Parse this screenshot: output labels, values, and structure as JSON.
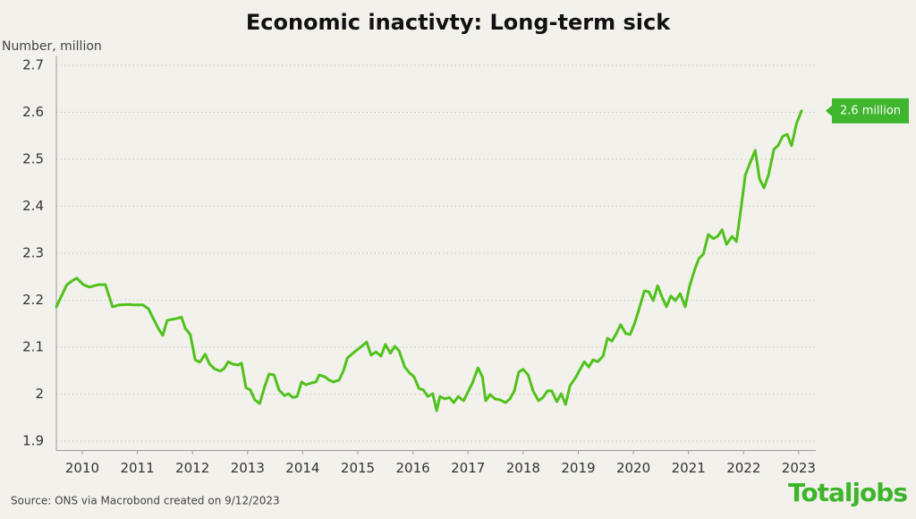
{
  "chart_data": {
    "type": "line",
    "title": "Economic inactivty: Long-term sick",
    "y_axis_label": "Number, million",
    "source": "Source: ONS via Macrobond created on 9/12/2023",
    "logo": "Totaljobs",
    "annotation": "2.6 million",
    "color": "#4fc21c",
    "annotation_color": "#3fb62e",
    "grid": true,
    "xlim": [
      2009.53,
      2023.31
    ],
    "ylim": [
      1.88,
      2.72
    ],
    "xticks": [
      2010,
      2011,
      2012,
      2013,
      2014,
      2015,
      2016,
      2017,
      2018,
      2019,
      2020,
      2021,
      2022,
      2023
    ],
    "yticks": [
      1.9,
      2.0,
      2.1,
      2.2,
      2.3,
      2.4,
      2.5,
      2.6,
      2.7
    ],
    "x": [
      2009.53,
      2009.72,
      2009.84,
      2009.9,
      2010.02,
      2010.13,
      2010.29,
      2010.42,
      2010.55,
      2010.67,
      2010.86,
      2010.94,
      2011.1,
      2011.2,
      2011.28,
      2011.38,
      2011.46,
      2011.54,
      2011.71,
      2011.8,
      2011.87,
      2011.96,
      2012.05,
      2012.13,
      2012.23,
      2012.31,
      2012.4,
      2012.5,
      2012.57,
      2012.65,
      2012.73,
      2012.83,
      2012.89,
      2012.97,
      2013.05,
      2013.13,
      2013.22,
      2013.31,
      2013.39,
      2013.48,
      2013.57,
      2013.67,
      2013.74,
      2013.82,
      2013.9,
      2013.98,
      2014.06,
      2014.16,
      2014.24,
      2014.3,
      2014.4,
      2014.48,
      2014.56,
      2014.66,
      2014.74,
      2014.81,
      2014.94,
      2015.05,
      2015.16,
      2015.24,
      2015.33,
      2015.42,
      2015.5,
      2015.59,
      2015.67,
      2015.75,
      2015.85,
      2015.94,
      2016.02,
      2016.11,
      2016.19,
      2016.27,
      2016.36,
      2016.43,
      2016.49,
      2016.58,
      2016.66,
      2016.74,
      2016.82,
      2016.92,
      2017.0,
      2017.08,
      2017.18,
      2017.26,
      2017.32,
      2017.4,
      2017.49,
      2017.58,
      2017.68,
      2017.76,
      2017.84,
      2017.92,
      2018.0,
      2018.09,
      2018.18,
      2018.28,
      2018.36,
      2018.44,
      2018.52,
      2018.61,
      2018.69,
      2018.77,
      2018.85,
      2018.95,
      2019.03,
      2019.11,
      2019.19,
      2019.27,
      2019.35,
      2019.45,
      2019.53,
      2019.61,
      2019.69,
      2019.77,
      2019.86,
      2019.94,
      2020.02,
      2020.1,
      2020.2,
      2020.28,
      2020.36,
      2020.44,
      2020.52,
      2020.6,
      2020.68,
      2020.76,
      2020.85,
      2020.94,
      2021.02,
      2021.11,
      2021.19,
      2021.27,
      2021.36,
      2021.45,
      2021.53,
      2021.61,
      2021.69,
      2021.79,
      2021.87,
      2021.95,
      2022.03,
      2022.11,
      2022.21,
      2022.29,
      2022.37,
      2022.45,
      2022.55,
      2022.63,
      2022.71,
      2022.79,
      2022.87,
      2022.96,
      2023.05
    ],
    "values": [
      2.186,
      2.233,
      2.243,
      2.247,
      2.233,
      2.228,
      2.233,
      2.233,
      2.186,
      2.19,
      2.191,
      2.19,
      2.19,
      2.182,
      2.163,
      2.14,
      2.125,
      2.157,
      2.161,
      2.164,
      2.14,
      2.127,
      2.073,
      2.068,
      2.085,
      2.064,
      2.054,
      2.049,
      2.054,
      2.069,
      2.064,
      2.062,
      2.066,
      2.014,
      2.009,
      1.988,
      1.98,
      2.016,
      2.043,
      2.041,
      2.009,
      1.997,
      2.001,
      1.993,
      1.995,
      2.026,
      2.02,
      2.024,
      2.026,
      2.041,
      2.037,
      2.03,
      2.026,
      2.03,
      2.05,
      2.077,
      2.09,
      2.1,
      2.111,
      2.083,
      2.09,
      2.081,
      2.106,
      2.087,
      2.102,
      2.092,
      2.058,
      2.045,
      2.037,
      2.012,
      2.009,
      1.995,
      2.001,
      1.965,
      1.995,
      1.99,
      1.993,
      1.982,
      1.995,
      1.986,
      2.005,
      2.024,
      2.056,
      2.037,
      1.986,
      1.999,
      1.99,
      1.988,
      1.982,
      1.99,
      2.007,
      2.047,
      2.053,
      2.041,
      2.007,
      1.986,
      1.993,
      2.007,
      2.007,
      1.984,
      2.001,
      1.978,
      2.018,
      2.035,
      2.052,
      2.069,
      2.058,
      2.073,
      2.069,
      2.081,
      2.119,
      2.113,
      2.129,
      2.148,
      2.129,
      2.127,
      2.15,
      2.18,
      2.22,
      2.218,
      2.199,
      2.231,
      2.207,
      2.186,
      2.209,
      2.199,
      2.214,
      2.186,
      2.23,
      2.264,
      2.289,
      2.298,
      2.34,
      2.331,
      2.336,
      2.35,
      2.319,
      2.336,
      2.325,
      2.393,
      2.466,
      2.49,
      2.519,
      2.458,
      2.439,
      2.466,
      2.521,
      2.53,
      2.549,
      2.553,
      2.529,
      2.576,
      2.603
    ]
  }
}
